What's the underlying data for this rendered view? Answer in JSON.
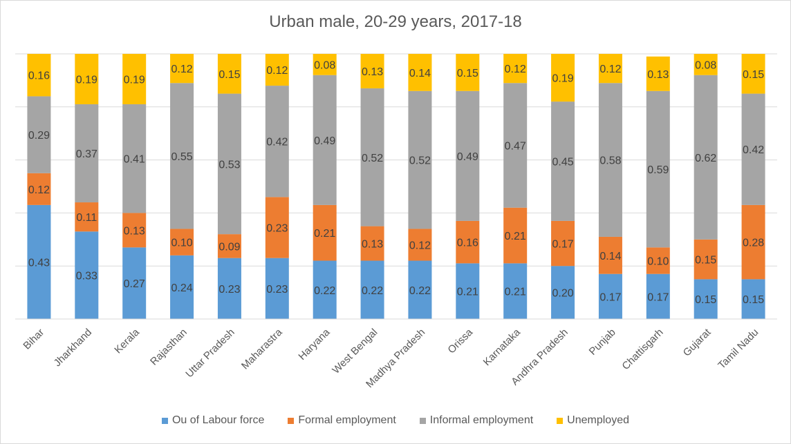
{
  "chart_data": {
    "type": "bar",
    "stacked": true,
    "title": "Urban male, 20-29 years, 2017-18",
    "xlabel": "",
    "ylabel": "",
    "ylim": [
      0,
      1
    ],
    "grid": true,
    "legend_position": "bottom",
    "categories": [
      "Bihar",
      "Jharkhand",
      "Kerala",
      "Rajasthan",
      "Uttar Pradesh",
      "Maharastra",
      "Haryana",
      "West Bengal",
      "Madhya Pradesh",
      "Orissa",
      "Karnataka",
      "Andhra Pradesh",
      "Punjab",
      "Chattisgarh",
      "Gujarat",
      "Tamil Nadu"
    ],
    "series": [
      {
        "name": "Ou of Labour force",
        "color": "#5b9bd5",
        "values": [
          0.43,
          0.33,
          0.27,
          0.24,
          0.23,
          0.23,
          0.22,
          0.22,
          0.22,
          0.21,
          0.21,
          0.2,
          0.17,
          0.17,
          0.15,
          0.15
        ],
        "labels": [
          "0.43",
          "0.33",
          "0.27",
          "0.24",
          "0.23",
          "0.23",
          "0.22",
          "0.22",
          "0.22",
          "0.21",
          "0.21",
          "0.20",
          "0.17",
          "0.17",
          "0.15",
          "0.15"
        ]
      },
      {
        "name": "Formal employment",
        "color": "#ed7d31",
        "values": [
          0.12,
          0.11,
          0.13,
          0.1,
          0.09,
          0.23,
          0.21,
          0.13,
          0.12,
          0.16,
          0.21,
          0.17,
          0.14,
          0.1,
          0.15,
          0.28
        ],
        "labels": [
          "0.12",
          "0.11",
          "0.13",
          "0.10",
          "0.09",
          "0.23",
          "0.21",
          "0.13",
          "0.12",
          "0.16",
          "0.21",
          "0.17",
          "0.14",
          "0.10",
          "0.15",
          "0.28"
        ]
      },
      {
        "name": "Informal employment",
        "color": "#a5a5a5",
        "values": [
          0.29,
          0.37,
          0.41,
          0.55,
          0.53,
          0.42,
          0.49,
          0.52,
          0.52,
          0.49,
          0.47,
          0.45,
          0.58,
          0.59,
          0.62,
          0.42
        ],
        "labels": [
          "0.29",
          "0.37",
          "0.41",
          "0.55",
          "0.53",
          "0.42",
          "0.49",
          "0.52",
          "0.52",
          "0.49",
          "0.47",
          "0.45",
          "0.58",
          "0.59",
          "0.62",
          "0.42"
        ]
      },
      {
        "name": "Unemployed",
        "color": "#ffc000",
        "values": [
          0.16,
          0.19,
          0.19,
          0.12,
          0.15,
          0.12,
          0.08,
          0.13,
          0.14,
          0.15,
          0.12,
          0.19,
          0.12,
          0.13,
          0.08,
          0.15
        ],
        "labels": [
          "0.16",
          "0.19",
          "0.19",
          "0.12",
          "0.15",
          "0.12",
          "0.08",
          "0.13",
          "0.14",
          "0.15",
          "0.12",
          "0.19",
          "0.12",
          "0.13",
          "0.08",
          "0.15"
        ]
      }
    ]
  }
}
